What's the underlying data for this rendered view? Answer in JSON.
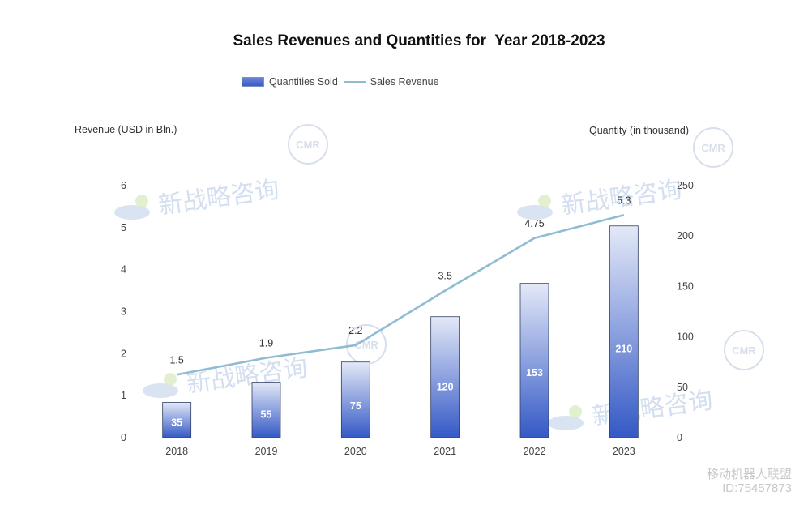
{
  "chart_data": {
    "type": "bar",
    "title": "Sales Revenues and Quantities for  Year 2018-2023",
    "categories": [
      "2018",
      "2019",
      "2020",
      "2021",
      "2022",
      "2023"
    ],
    "series": [
      {
        "name": "Quantities Sold",
        "type": "bar",
        "axis": "right",
        "values": [
          35,
          55,
          75,
          120,
          153,
          210
        ],
        "color": "#3a5dc7"
      },
      {
        "name": "Sales Revenue",
        "type": "line",
        "axis": "left",
        "values": [
          1.5,
          1.9,
          2.2,
          3.5,
          4.75,
          5.3
        ],
        "color": "#8fbcd4"
      }
    ],
    "left_axis": {
      "label": "Revenue (USD in Bln.)",
      "ylim": [
        0,
        6
      ],
      "ticks": [
        "0",
        "1",
        "2",
        "3",
        "4",
        "5",
        "6"
      ]
    },
    "right_axis": {
      "label": "Quantity (in thousand)",
      "ylim": [
        0,
        250
      ],
      "ticks": [
        "0",
        "50",
        "100",
        "150",
        "200",
        "250"
      ]
    },
    "legend_position": "top",
    "grid": false
  },
  "watermark": {
    "text": "新战略咨询",
    "badge": "CMR"
  },
  "footer": {
    "brand": "移动机器人联盟",
    "id": "ID:75457873"
  }
}
